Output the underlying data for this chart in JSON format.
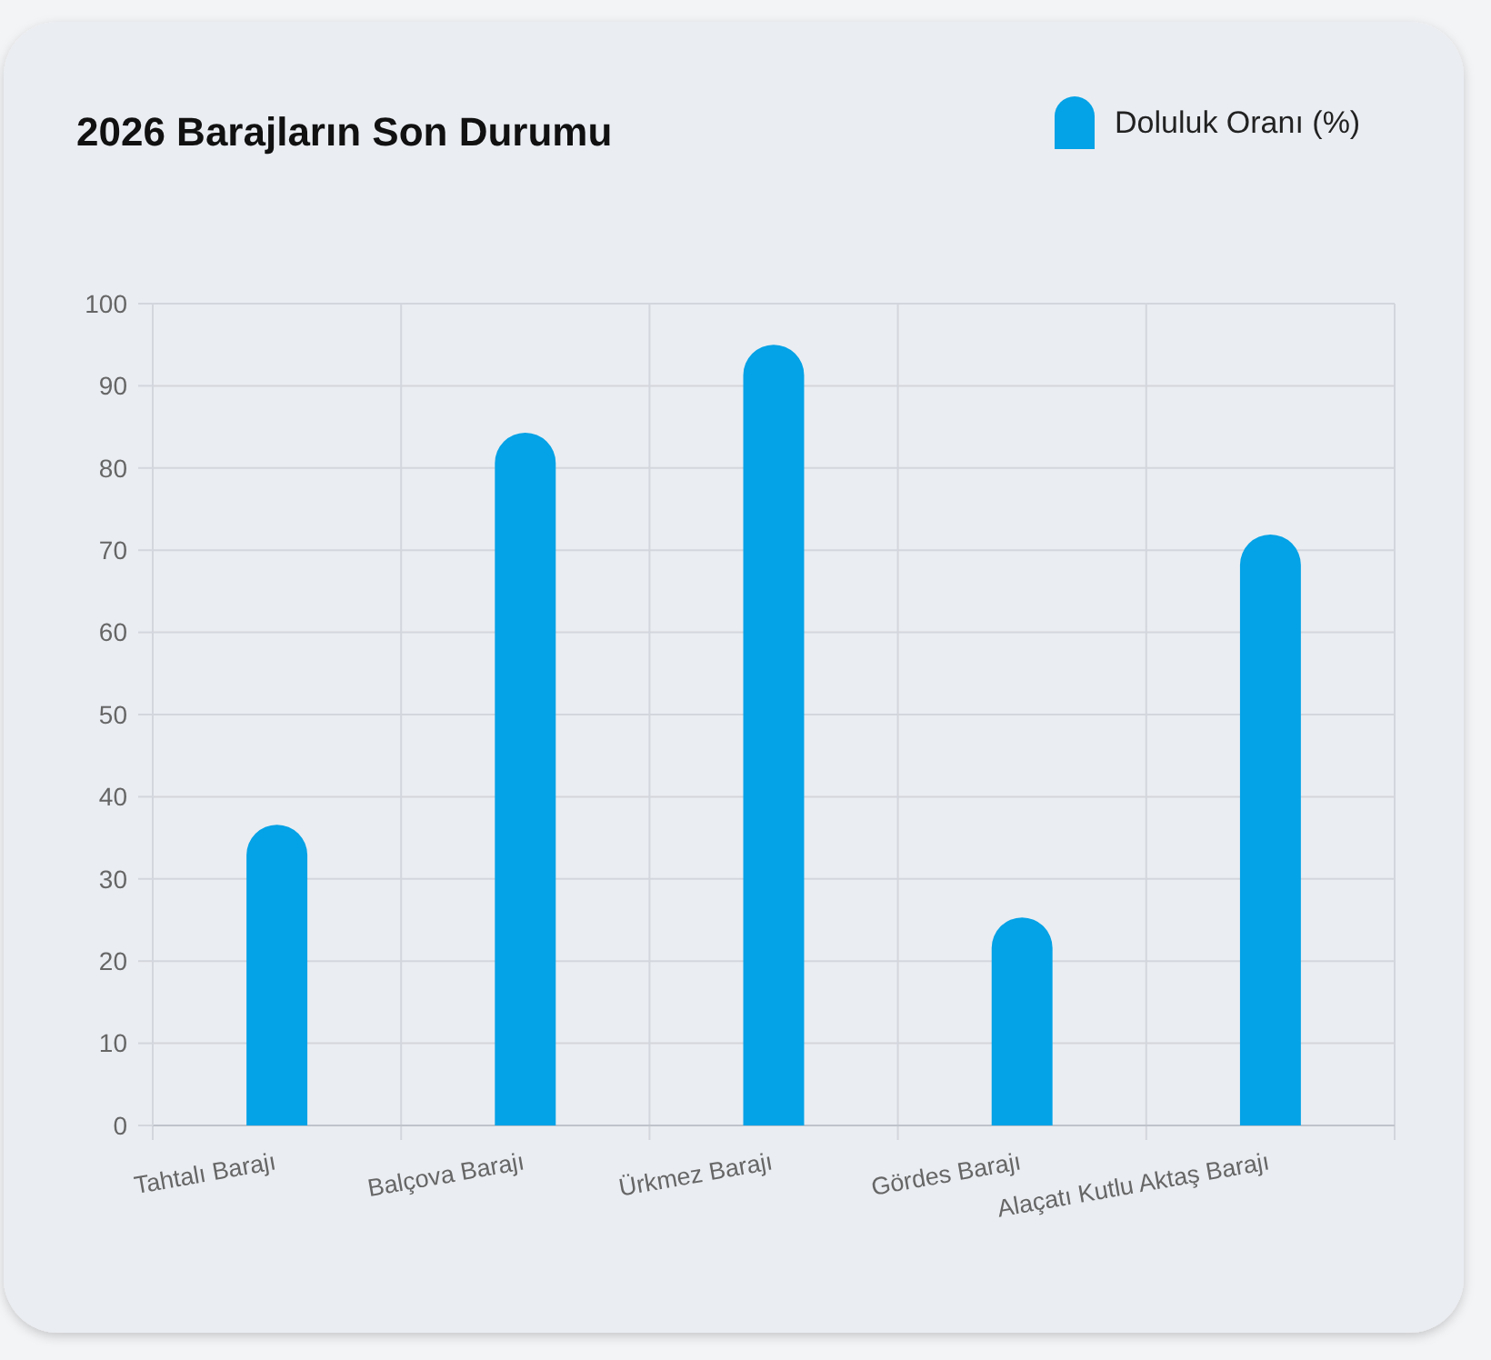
{
  "chart_data": {
    "type": "bar",
    "title": "2026 Barajların Son Durumu",
    "categories": [
      "Tahtalı Barajı",
      "Balçova Barajı",
      "Ürkmez Barajı",
      "Gördes Barajı",
      "Alaçatı Kutlu Aktaş Barajı"
    ],
    "series": [
      {
        "name": "Doluluk Oranı (%)",
        "color": "#04a2e6",
        "values": [
          36.6,
          84.3,
          95,
          25.3,
          71.9
        ]
      }
    ],
    "ylim": [
      0,
      100
    ],
    "yticks": [
      0,
      10,
      20,
      30,
      40,
      50,
      60,
      70,
      80,
      90,
      100
    ],
    "grid": true,
    "legend": "top right"
  }
}
